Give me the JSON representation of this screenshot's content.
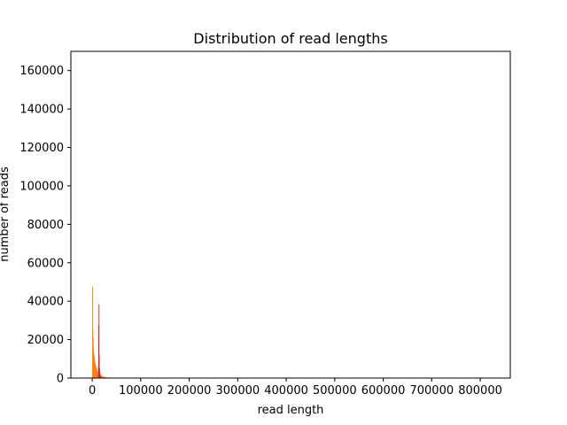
{
  "chart_data": {
    "type": "bar",
    "title": "Distribution of read lengths",
    "xlabel": "read length",
    "ylabel": "number of reads",
    "xlim": [
      -44000,
      862000
    ],
    "ylim": [
      0,
      170000
    ],
    "xticks": [
      0,
      100000,
      200000,
      300000,
      400000,
      500000,
      600000,
      700000,
      800000
    ],
    "xtick_labels": [
      "0",
      "100000",
      "200000",
      "300000",
      "400000",
      "500000",
      "600000",
      "700000",
      "800000"
    ],
    "yticks": [
      0,
      20000,
      40000,
      60000,
      80000,
      100000,
      120000,
      140000,
      160000
    ],
    "ytick_labels": [
      "0",
      "20000",
      "40000",
      "60000",
      "80000",
      "100000",
      "120000",
      "140000",
      "160000"
    ],
    "grid": false,
    "legend": "none",
    "series": [
      {
        "color": "#ff7f0e",
        "bins": [
          {
            "x": 0,
            "y": 47500
          },
          {
            "x": 600,
            "y": 25000
          },
          {
            "x": 1200,
            "y": 21000
          },
          {
            "x": 1800,
            "y": 15000
          },
          {
            "x": 2400,
            "y": 14000
          },
          {
            "x": 3000,
            "y": 12000
          },
          {
            "x": 3600,
            "y": 11000
          },
          {
            "x": 4200,
            "y": 9500
          },
          {
            "x": 4800,
            "y": 8500
          },
          {
            "x": 5400,
            "y": 7500
          },
          {
            "x": 6000,
            "y": 7000
          },
          {
            "x": 6600,
            "y": 6000
          },
          {
            "x": 7200,
            "y": 5500
          },
          {
            "x": 7800,
            "y": 5000
          },
          {
            "x": 8400,
            "y": 4500
          },
          {
            "x": 9000,
            "y": 4000
          },
          {
            "x": 9600,
            "y": 3500
          },
          {
            "x": 10200,
            "y": 3000
          },
          {
            "x": 10800,
            "y": 2500
          },
          {
            "x": 11400,
            "y": 2200
          },
          {
            "x": 12000,
            "y": 2000
          },
          {
            "x": 13000,
            "y": 1800
          },
          {
            "x": 14000,
            "y": 1600
          },
          {
            "x": 15000,
            "y": 1500
          },
          {
            "x": 16000,
            "y": 1400
          },
          {
            "x": 17000,
            "y": 1300
          },
          {
            "x": 18000,
            "y": 1200
          },
          {
            "x": 19000,
            "y": 1100
          },
          {
            "x": 20000,
            "y": 1000
          },
          {
            "x": 22000,
            "y": 900
          },
          {
            "x": 24000,
            "y": 800
          },
          {
            "x": 26000,
            "y": 600
          },
          {
            "x": 28000,
            "y": 500
          },
          {
            "x": 30000,
            "y": 400
          },
          {
            "x": 32000,
            "y": 300
          },
          {
            "x": 34000,
            "y": 200
          }
        ]
      },
      {
        "color": "#d62728",
        "bins": [
          {
            "x": 12000,
            "y": 6000
          },
          {
            "x": 12600,
            "y": 27500
          },
          {
            "x": 13200,
            "y": 38500
          },
          {
            "x": 13800,
            "y": 12000
          },
          {
            "x": 14400,
            "y": 5000
          },
          {
            "x": 15000,
            "y": 3000
          },
          {
            "x": 15600,
            "y": 2000
          },
          {
            "x": 16200,
            "y": 1500
          }
        ]
      }
    ]
  }
}
